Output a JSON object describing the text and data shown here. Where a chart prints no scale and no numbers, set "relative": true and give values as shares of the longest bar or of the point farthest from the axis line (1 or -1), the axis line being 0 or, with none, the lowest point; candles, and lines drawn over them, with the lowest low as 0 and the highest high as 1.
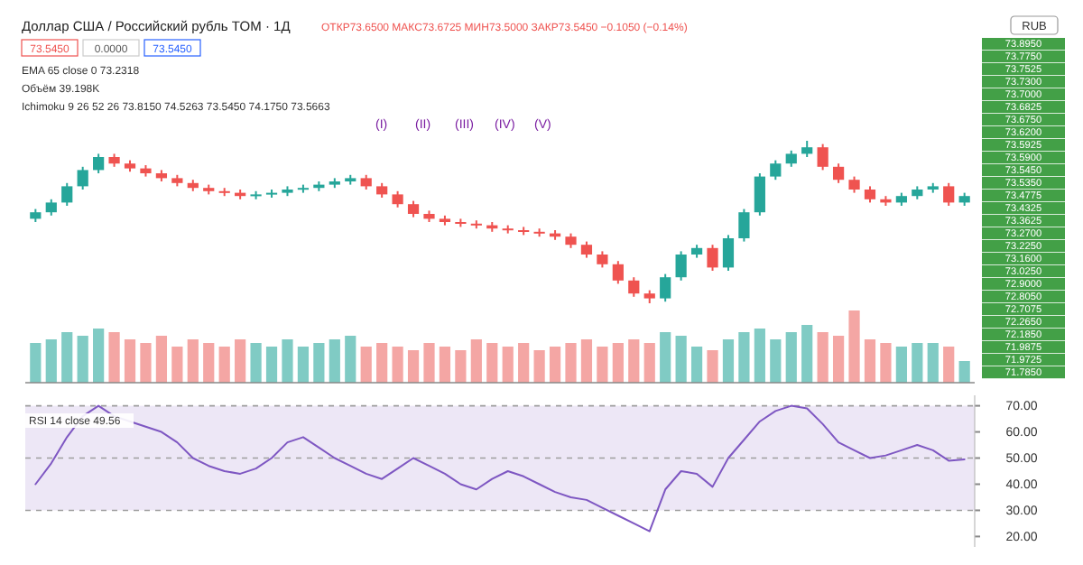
{
  "chart_data": [
    {
      "type": "candlestick",
      "title": "Доллар США / Российский рубль TOM · 1Д",
      "subtitle": "ОТКР73.6500 МАКС73.6725 МИН73.5000 ЗАКР73.5450 −0.1050 (−0.14%)",
      "relative": true,
      "categories": [
        null,
        null,
        null,
        null,
        null,
        null,
        null,
        null,
        null,
        null,
        null,
        null,
        null,
        null,
        null,
        null,
        null,
        null,
        null,
        null,
        null,
        null,
        null,
        null,
        null,
        null,
        null,
        null,
        null,
        null,
        null,
        null,
        null,
        null,
        null,
        null,
        null,
        null,
        null,
        null,
        null,
        null,
        null,
        null,
        null,
        null,
        null,
        null,
        null,
        null,
        null,
        null,
        null,
        null,
        null,
        null,
        null,
        null,
        null,
        null
      ],
      "ohlc": [
        [
          0.52,
          0.58,
          0.5,
          0.56
        ],
        [
          0.56,
          0.64,
          0.54,
          0.62
        ],
        [
          0.62,
          0.74,
          0.6,
          0.72
        ],
        [
          0.72,
          0.84,
          0.7,
          0.82
        ],
        [
          0.82,
          0.92,
          0.8,
          0.9
        ],
        [
          0.9,
          0.92,
          0.84,
          0.86
        ],
        [
          0.86,
          0.88,
          0.81,
          0.83
        ],
        [
          0.83,
          0.85,
          0.78,
          0.8
        ],
        [
          0.8,
          0.82,
          0.75,
          0.77
        ],
        [
          0.77,
          0.79,
          0.72,
          0.74
        ],
        [
          0.74,
          0.76,
          0.69,
          0.71
        ],
        [
          0.71,
          0.73,
          0.67,
          0.69
        ],
        [
          0.69,
          0.71,
          0.66,
          0.68
        ],
        [
          0.68,
          0.7,
          0.64,
          0.66
        ],
        [
          0.66,
          0.69,
          0.64,
          0.67
        ],
        [
          0.67,
          0.7,
          0.65,
          0.68
        ],
        [
          0.68,
          0.72,
          0.66,
          0.7
        ],
        [
          0.7,
          0.73,
          0.68,
          0.71
        ],
        [
          0.71,
          0.75,
          0.69,
          0.73
        ],
        [
          0.73,
          0.77,
          0.71,
          0.75
        ],
        [
          0.75,
          0.79,
          0.73,
          0.77
        ],
        [
          0.77,
          0.79,
          0.7,
          0.72
        ],
        [
          0.72,
          0.74,
          0.65,
          0.67
        ],
        [
          0.67,
          0.69,
          0.59,
          0.61
        ],
        [
          0.61,
          0.63,
          0.53,
          0.55
        ],
        [
          0.55,
          0.57,
          0.5,
          0.52
        ],
        [
          0.52,
          0.54,
          0.48,
          0.5
        ],
        [
          0.5,
          0.52,
          0.47,
          0.49
        ],
        [
          0.49,
          0.51,
          0.46,
          0.48
        ],
        [
          0.48,
          0.5,
          0.44,
          0.46
        ],
        [
          0.46,
          0.48,
          0.43,
          0.45
        ],
        [
          0.45,
          0.47,
          0.42,
          0.44
        ],
        [
          0.44,
          0.46,
          0.41,
          0.43
        ],
        [
          0.43,
          0.45,
          0.39,
          0.41
        ],
        [
          0.41,
          0.43,
          0.34,
          0.36
        ],
        [
          0.36,
          0.38,
          0.28,
          0.3
        ],
        [
          0.3,
          0.32,
          0.22,
          0.24
        ],
        [
          0.24,
          0.26,
          0.12,
          0.14
        ],
        [
          0.14,
          0.16,
          0.04,
          0.06
        ],
        [
          0.06,
          0.08,
          0,
          0.03
        ],
        [
          0.03,
          0.18,
          0.01,
          0.16
        ],
        [
          0.16,
          0.32,
          0.14,
          0.3
        ],
        [
          0.3,
          0.36,
          0.28,
          0.34
        ],
        [
          0.34,
          0.36,
          0.2,
          0.22
        ],
        [
          0.22,
          0.42,
          0.2,
          0.4
        ],
        [
          0.4,
          0.58,
          0.38,
          0.56
        ],
        [
          0.56,
          0.8,
          0.54,
          0.78
        ],
        [
          0.78,
          0.88,
          0.76,
          0.86
        ],
        [
          0.86,
          0.94,
          0.84,
          0.92
        ],
        [
          0.92,
          1,
          0.9,
          0.96
        ],
        [
          0.96,
          0.98,
          0.82,
          0.84
        ],
        [
          0.84,
          0.86,
          0.74,
          0.76
        ],
        [
          0.76,
          0.78,
          0.68,
          0.7
        ],
        [
          0.7,
          0.72,
          0.62,
          0.64
        ],
        [
          0.64,
          0.66,
          0.6,
          0.62
        ],
        [
          0.62,
          0.68,
          0.6,
          0.66
        ],
        [
          0.66,
          0.72,
          0.64,
          0.7
        ],
        [
          0.7,
          0.74,
          0.68,
          0.72
        ],
        [
          0.72,
          0.74,
          0.6,
          0.62
        ],
        [
          0.62,
          0.68,
          0.6,
          0.66
        ]
      ],
      "annotations": [
        "73.5450",
        "0.0000",
        "73.5450",
        "EMA 65 close 0 73.2318",
        "Ichimoku 9 26 52 26 73.8150 74.5263 73.5450 74.1750 73.5663",
        "(I)",
        "(II)",
        "(III)",
        "(IV)",
        "(V)",
        "RUB",
        "73.8950",
        "73.7750",
        "73.7525",
        "73.7300",
        "73.7000",
        "73.6825",
        "73.6750",
        "73.6200",
        "73.5925",
        "73.5900",
        "73.5450",
        "73.5350",
        "73.4775",
        "73.4325",
        "73.3625",
        "73.2700",
        "73.2250",
        "73.1600",
        "73.0250",
        "72.9000",
        "72.8050",
        "72.7075",
        "72.2650",
        "72.1850",
        "71.9875",
        "71.9725",
        "71.7850"
      ]
    },
    {
      "type": "bar",
      "relative": true,
      "categories": [
        null,
        null,
        null,
        null,
        null,
        null,
        null,
        null,
        null,
        null,
        null,
        null,
        null,
        null,
        null,
        null,
        null,
        null,
        null,
        null,
        null,
        null,
        null,
        null,
        null,
        null,
        null,
        null,
        null,
        null,
        null,
        null,
        null,
        null,
        null,
        null,
        null,
        null,
        null,
        null,
        null,
        null,
        null,
        null,
        null,
        null,
        null,
        null,
        null,
        null,
        null,
        null,
        null,
        null,
        null,
        null,
        null,
        null,
        null,
        null
      ],
      "values": [
        0.55,
        0.6,
        0.7,
        0.65,
        0.75,
        0.7,
        0.6,
        0.55,
        0.65,
        0.5,
        0.6,
        0.55,
        0.5,
        0.6,
        0.55,
        0.5,
        0.6,
        0.5,
        0.55,
        0.6,
        0.65,
        0.5,
        0.55,
        0.5,
        0.45,
        0.55,
        0.5,
        0.45,
        0.6,
        0.55,
        0.5,
        0.55,
        0.45,
        0.5,
        0.55,
        0.6,
        0.5,
        0.55,
        0.6,
        0.55,
        0.7,
        0.65,
        0.5,
        0.45,
        0.6,
        0.7,
        0.75,
        0.6,
        0.7,
        0.8,
        0.7,
        0.65,
        1,
        0.6,
        0.55,
        0.5,
        0.55,
        0.55,
        0.5,
        0.3
      ],
      "colors": [
        "#80cbc4",
        "#80cbc4",
        "#80cbc4",
        "#80cbc4",
        "#80cbc4",
        "#f4a6a4",
        "#f4a6a4",
        "#f4a6a4",
        "#f4a6a4",
        "#f4a6a4",
        "#f4a6a4",
        "#f4a6a4",
        "#f4a6a4",
        "#f4a6a4",
        "#80cbc4",
        "#80cbc4",
        "#80cbc4",
        "#80cbc4",
        "#80cbc4",
        "#80cbc4",
        "#80cbc4",
        "#f4a6a4",
        "#f4a6a4",
        "#f4a6a4",
        "#f4a6a4",
        "#f4a6a4",
        "#f4a6a4",
        "#f4a6a4",
        "#f4a6a4",
        "#f4a6a4",
        "#f4a6a4",
        "#f4a6a4",
        "#f4a6a4",
        "#f4a6a4",
        "#f4a6a4",
        "#f4a6a4",
        "#f4a6a4",
        "#f4a6a4",
        "#f4a6a4",
        "#f4a6a4",
        "#80cbc4",
        "#80cbc4",
        "#80cbc4",
        "#f4a6a4",
        "#80cbc4",
        "#80cbc4",
        "#80cbc4",
        "#80cbc4",
        "#80cbc4",
        "#80cbc4",
        "#f4a6a4",
        "#f4a6a4",
        "#f4a6a4",
        "#f4a6a4",
        "#f4a6a4",
        "#80cbc4",
        "#80cbc4",
        "#80cbc4",
        "#f4a6a4",
        "#80cbc4"
      ],
      "annotations": [
        "Объём 39.198K"
      ]
    },
    {
      "type": "line",
      "categories": [
        null,
        null,
        null,
        null,
        null,
        null,
        null,
        null,
        null,
        null,
        null,
        null,
        null,
        null,
        null,
        null,
        null,
        null,
        null,
        null,
        null,
        null,
        null,
        null,
        null,
        null,
        null,
        null,
        null,
        null,
        null,
        null,
        null,
        null,
        null,
        null,
        null,
        null,
        null,
        null,
        null,
        null,
        null,
        null,
        null,
        null,
        null,
        null,
        null,
        null,
        null,
        null,
        null,
        null,
        null,
        null,
        null,
        null,
        null,
        null
      ],
      "series": [
        {
          "color": "#7e57c2",
          "values": [
            40,
            48,
            58,
            66,
            70,
            66,
            64,
            62,
            60,
            56,
            50,
            47,
            45,
            44,
            46,
            50,
            56,
            58,
            54,
            50,
            47,
            44,
            42,
            46,
            50,
            47,
            44,
            40,
            38,
            42,
            45,
            43,
            40,
            37,
            35,
            34,
            31,
            28,
            25,
            22,
            38,
            45,
            44,
            39,
            50,
            57,
            64,
            68,
            70,
            69,
            63,
            56,
            53,
            50,
            51,
            53,
            55,
            53,
            49,
            49.5
          ]
        }
      ],
      "ylim": [
        16,
        74
      ],
      "yticks": [
        {
          "value": 20,
          "label": "20.00"
        },
        {
          "value": 30,
          "label": "30.00"
        },
        {
          "value": 40,
          "label": "40.00"
        },
        {
          "value": 50,
          "label": "50.00"
        },
        {
          "value": 60,
          "label": "60.00"
        },
        {
          "value": 70,
          "label": "70.00"
        }
      ],
      "tick_labels": "y",
      "bands": [
        {
          "axis": "y",
          "from": 30,
          "to": 70,
          "color": "#ede7f6"
        }
      ],
      "ref_lines": [
        {
          "axis": "y",
          "value": 70,
          "color": "#9e9e9e",
          "line_style": "dashed"
        },
        {
          "axis": "y",
          "value": 50,
          "color": "#9e9e9e",
          "line_style": "dashed"
        },
        {
          "axis": "y",
          "value": 30,
          "color": "#9e9e9e",
          "line_style": "dashed"
        }
      ],
      "annotations": [
        "RSI 14 close 49.56"
      ]
    }
  ]
}
